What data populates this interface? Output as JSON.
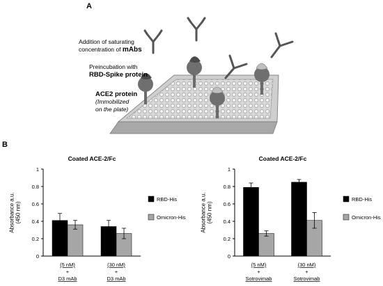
{
  "panel_a": {
    "letter": "A",
    "annotations": {
      "mabs_line1": "Addition of saturating",
      "mabs_line2_prefix": "concentration of ",
      "mabs_line2_bold": "mAbs",
      "rbd_line1": "Preincubation with",
      "rbd_line2": "RBD-Spike protein",
      "ace2_title": "ACE2 protein",
      "ace2_note1": "(Immobilized",
      "ace2_note2": "on the plate)"
    }
  },
  "panel_b": {
    "letter": "B"
  },
  "chart_data": [
    {
      "type": "bar",
      "title": "Coated ACE-2/Fc",
      "ylabel": "Absorbance a.u. (450 nm)",
      "ylim": [
        0,
        1
      ],
      "yticks": [
        "0",
        "0.2",
        "0.4",
        "0.6",
        "0.8",
        "1"
      ],
      "categories": [
        {
          "line1": "(5 nM)",
          "line2": "+",
          "line3": "D3 mAb"
        },
        {
          "line1": "(30 nM)",
          "line2": "+",
          "line3": "D3 mAb"
        }
      ],
      "series": [
        {
          "name": "RBD-His",
          "color": "#000000",
          "values": [
            0.41,
            0.34
          ],
          "errors": [
            0.08,
            0.07
          ]
        },
        {
          "name": "Omicron-His",
          "color": "#a6a6a6",
          "values": [
            0.36,
            0.26
          ],
          "errors": [
            0.05,
            0.06
          ]
        }
      ],
      "legend": "right"
    },
    {
      "type": "bar",
      "title": "Coated ACE-2/Fc",
      "ylabel": "Absorbance a.u. (450 nm)",
      "ylim": [
        0,
        1
      ],
      "yticks": [
        "0",
        "0.2",
        "0.4",
        "0.6",
        "0.8",
        "1"
      ],
      "categories": [
        {
          "line1": "(5 nM)",
          "line2": "+",
          "line3": "Sotrovimab"
        },
        {
          "line1": "(30 nM)",
          "line2": "+",
          "line3": "Sotrovimab"
        }
      ],
      "series": [
        {
          "name": "RBD-His",
          "color": "#000000",
          "values": [
            0.79,
            0.85
          ],
          "errors": [
            0.05,
            0.03
          ]
        },
        {
          "name": "Omicron-His",
          "color": "#a6a6a6",
          "values": [
            0.26,
            0.41
          ],
          "errors": [
            0.03,
            0.09
          ]
        }
      ],
      "legend": "right"
    }
  ]
}
